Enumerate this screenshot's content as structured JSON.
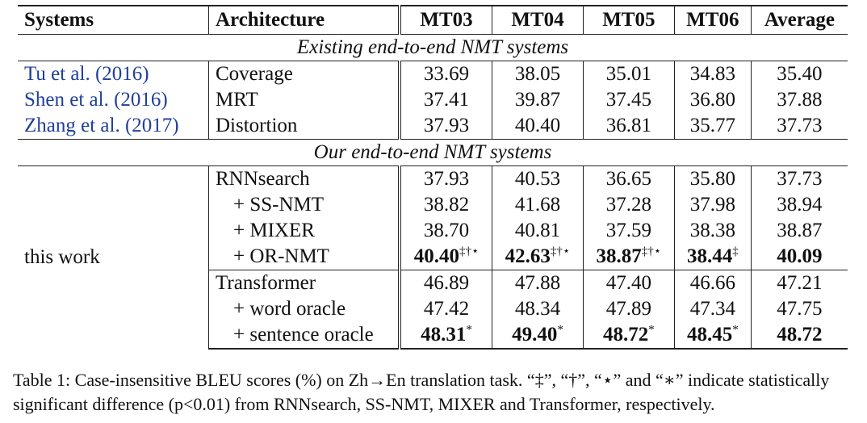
{
  "headers": [
    "Systems",
    "Architecture",
    "MT03",
    "MT04",
    "MT05",
    "MT06",
    "Average"
  ],
  "sections": {
    "existing": "Existing end-to-end NMT systems",
    "ours": "Our end-to-end NMT systems"
  },
  "existing_rows": [
    {
      "system": "Tu et al. (2016)",
      "arch": "Coverage",
      "values": [
        "33.69",
        "38.05",
        "35.01",
        "34.83",
        "35.40"
      ]
    },
    {
      "system": "Shen et al. (2016)",
      "arch": "MRT",
      "values": [
        "37.41",
        "39.87",
        "37.45",
        "36.80",
        "37.88"
      ]
    },
    {
      "system": "Zhang et al. (2017)",
      "arch": "Distortion",
      "values": [
        "37.93",
        "40.40",
        "36.81",
        "35.77",
        "37.73"
      ]
    }
  ],
  "this_work_label": "this work",
  "rnn_rows": [
    {
      "arch": "RNNsearch",
      "values": [
        "37.93",
        "40.53",
        "36.65",
        "35.80",
        "37.73"
      ]
    },
    {
      "arch": "+ SS-NMT",
      "values": [
        "38.82",
        "41.68",
        "37.28",
        "37.98",
        "38.94"
      ]
    },
    {
      "arch": "+ MIXER",
      "values": [
        "38.70",
        "40.81",
        "37.59",
        "38.38",
        "38.87"
      ]
    },
    {
      "arch": "+ OR-NMT",
      "values": [
        "40.40",
        "42.63",
        "38.87",
        "38.44",
        "40.09"
      ],
      "marks": [
        "‡†⋆",
        "‡†⋆",
        "‡†⋆",
        "‡",
        ""
      ]
    }
  ],
  "transformer_rows": [
    {
      "arch": "Transformer",
      "values": [
        "46.89",
        "47.88",
        "47.40",
        "46.66",
        "47.21"
      ]
    },
    {
      "arch": "+ word oracle",
      "values": [
        "47.42",
        "48.34",
        "47.89",
        "47.34",
        "47.75"
      ]
    },
    {
      "arch": "+ sentence oracle",
      "values": [
        "48.31",
        "49.40",
        "48.72",
        "48.45",
        "48.72"
      ],
      "marks": [
        "*",
        "*",
        "*",
        "*",
        ""
      ]
    }
  ],
  "caption": {
    "line1": "Table 1: Case-insensitive BLEU scores (%) on Zh→En translation task. “‡”, “†”, “⋆” and “∗” indicate statistically",
    "line2": "significant difference (p<0.01) from RNNsearch, SS-NMT, MIXER and Transformer, respectively."
  }
}
